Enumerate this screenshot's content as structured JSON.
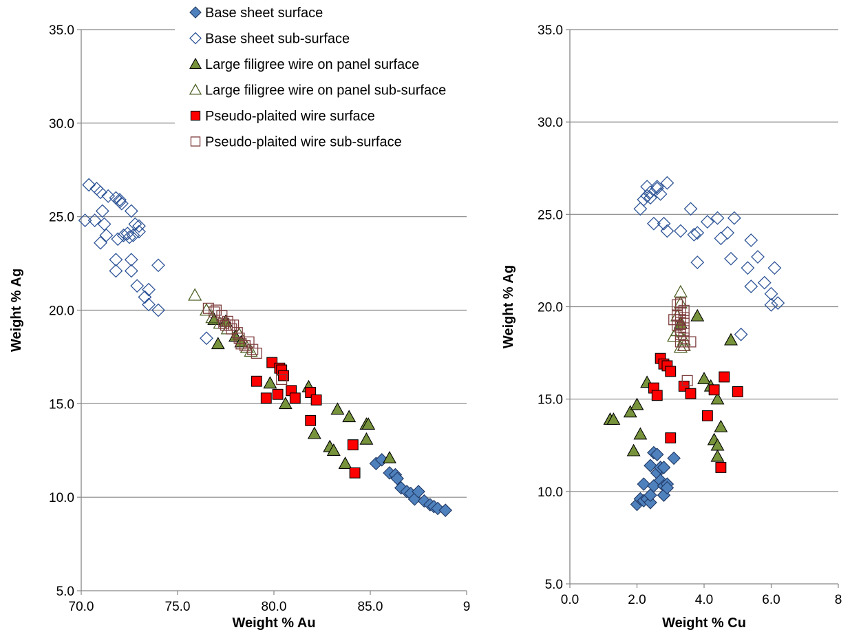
{
  "legend": [
    {
      "name": "Base sheet surface",
      "marker": "diamond",
      "fill": "#4f81bd",
      "stroke": "#1f3864"
    },
    {
      "name": "Base sheet sub-surface",
      "marker": "diamond",
      "fill": "none",
      "stroke": "#2f5597"
    },
    {
      "name": "Large filigree wire on panel surface",
      "marker": "triangle",
      "fill": "#77933c",
      "stroke": "#000000"
    },
    {
      "name": "Large filigree wire on panel sub-surface",
      "marker": "triangle",
      "fill": "none",
      "stroke": "#4f6228"
    },
    {
      "name": "Pseudo-plaited wire  surface",
      "marker": "square",
      "fill": "#ff0000",
      "stroke": "#000000"
    },
    {
      "name": "Pseudo-plaited wire  sub-surface",
      "marker": "square",
      "fill": "none",
      "stroke": "#7f3f3f"
    }
  ],
  "chart_data": [
    {
      "type": "scatter",
      "xlabel": "Weight % Au",
      "ylabel": "Weight % Ag",
      "xlim": [
        70,
        90
      ],
      "ylim": [
        5,
        35
      ],
      "xticks": [
        "70.0",
        "75.0",
        "80.0",
        "85.0",
        "9"
      ],
      "yticks": [
        "5.0",
        "10.0",
        "15.0",
        "20.0",
        "25.0",
        "30.0",
        "35.0"
      ],
      "grid": "horizontal",
      "series": [
        {
          "name": "Base sheet surface",
          "points": [
            [
              85.3,
              11.8
            ],
            [
              85.6,
              12.0
            ],
            [
              86.0,
              11.3
            ],
            [
              86.3,
              11.2
            ],
            [
              86.4,
              11.0
            ],
            [
              86.6,
              10.5
            ],
            [
              86.9,
              10.3
            ],
            [
              87.1,
              10.2
            ],
            [
              87.3,
              9.9
            ],
            [
              87.5,
              10.3
            ],
            [
              87.8,
              9.8
            ],
            [
              88.1,
              9.6
            ],
            [
              88.3,
              9.5
            ],
            [
              88.5,
              9.4
            ],
            [
              88.9,
              9.3
            ]
          ]
        },
        {
          "name": "Base sheet sub-surface",
          "points": [
            [
              70.2,
              24.8
            ],
            [
              70.4,
              26.7
            ],
            [
              70.7,
              24.8
            ],
            [
              70.8,
              26.5
            ],
            [
              71.0,
              26.3
            ],
            [
              71.0,
              23.6
            ],
            [
              71.1,
              25.3
            ],
            [
              71.2,
              24.6
            ],
            [
              71.3,
              24.0
            ],
            [
              71.4,
              26.1
            ],
            [
              71.8,
              26.0
            ],
            [
              71.8,
              22.7
            ],
            [
              71.8,
              22.1
            ],
            [
              71.9,
              23.8
            ],
            [
              72.0,
              25.8
            ],
            [
              72.0,
              25.9
            ],
            [
              72.1,
              25.7
            ],
            [
              72.2,
              24.0
            ],
            [
              72.4,
              24.1
            ],
            [
              72.5,
              23.9
            ],
            [
              72.6,
              22.7
            ],
            [
              72.6,
              22.1
            ],
            [
              72.6,
              25.3
            ],
            [
              72.7,
              24.0
            ],
            [
              72.8,
              24.6
            ],
            [
              72.9,
              21.3
            ],
            [
              73.0,
              24.2
            ],
            [
              73.0,
              24.5
            ],
            [
              73.3,
              20.7
            ],
            [
              73.5,
              21.1
            ],
            [
              73.5,
              20.3
            ],
            [
              74.0,
              22.4
            ],
            [
              74.0,
              20.0
            ],
            [
              76.5,
              18.5
            ]
          ]
        },
        {
          "name": "Large filigree wire on panel surface",
          "points": [
            [
              76.9,
              19.5
            ],
            [
              77.1,
              18.2
            ],
            [
              79.8,
              16.1
            ],
            [
              80.6,
              15.0
            ],
            [
              81.8,
              15.9
            ],
            [
              82.1,
              13.4
            ],
            [
              82.9,
              12.7
            ],
            [
              83.1,
              12.5
            ],
            [
              83.3,
              14.7
            ],
            [
              83.7,
              11.8
            ],
            [
              83.9,
              14.3
            ],
            [
              84.8,
              13.9
            ],
            [
              84.8,
              13.1
            ],
            [
              84.9,
              13.9
            ],
            [
              86.0,
              12.1
            ],
            [
              77.5,
              19.4
            ],
            [
              78.0,
              18.6
            ],
            [
              78.3,
              18.3
            ]
          ]
        },
        {
          "name": "Large filigree wire on panel sub-surface",
          "points": [
            [
              75.9,
              20.8
            ],
            [
              76.5,
              20.0
            ],
            [
              76.8,
              19.6
            ],
            [
              77.2,
              19.3
            ],
            [
              77.6,
              19.0
            ],
            [
              78.2,
              18.7
            ],
            [
              78.6,
              18.0
            ],
            [
              78.8,
              17.8
            ]
          ]
        },
        {
          "name": "Pseudo-plaited wire  surface",
          "points": [
            [
              79.1,
              16.2
            ],
            [
              79.6,
              15.3
            ],
            [
              79.9,
              17.2
            ],
            [
              80.2,
              15.5
            ],
            [
              80.3,
              16.9
            ],
            [
              80.4,
              16.8
            ],
            [
              80.5,
              16.5
            ],
            [
              80.9,
              15.7
            ],
            [
              81.1,
              15.3
            ],
            [
              81.9,
              15.6
            ],
            [
              82.2,
              15.2
            ],
            [
              81.9,
              14.1
            ],
            [
              84.1,
              12.8
            ],
            [
              84.2,
              11.3
            ]
          ]
        },
        {
          "name": "Pseudo-plaited wire  sub-surface",
          "points": [
            [
              76.6,
              20.1
            ],
            [
              76.9,
              19.9
            ],
            [
              77.0,
              20.0
            ],
            [
              77.3,
              19.7
            ],
            [
              77.4,
              19.3
            ],
            [
              77.5,
              19.2
            ],
            [
              77.6,
              19.4
            ],
            [
              77.7,
              19.2
            ],
            [
              77.8,
              19.0
            ],
            [
              77.9,
              19.2
            ],
            [
              78.1,
              18.8
            ],
            [
              78.2,
              18.5
            ],
            [
              78.3,
              18.2
            ],
            [
              78.5,
              18.1
            ],
            [
              78.7,
              18.3
            ],
            [
              78.9,
              17.9
            ],
            [
              79.1,
              17.7
            ],
            [
              80.4,
              16.3
            ]
          ]
        }
      ]
    },
    {
      "type": "scatter",
      "xlabel": "Weight % Cu",
      "ylabel": "Weight % Ag",
      "xlim": [
        0,
        8
      ],
      "ylim": [
        5,
        35
      ],
      "xticks": [
        "0.0",
        "2.0",
        "4.0",
        "6.0",
        "8"
      ],
      "yticks": [
        "5.0",
        "10.0",
        "15.0",
        "20.0",
        "25.0",
        "30.0",
        "35.0"
      ],
      "grid": "horizontal",
      "series": [
        {
          "name": "Base sheet surface",
          "points": [
            [
              2.0,
              9.3
            ],
            [
              2.1,
              9.6
            ],
            [
              2.2,
              10.4
            ],
            [
              2.2,
              9.5
            ],
            [
              2.3,
              9.6
            ],
            [
              2.4,
              9.4
            ],
            [
              2.4,
              11.4
            ],
            [
              2.4,
              9.8
            ],
            [
              2.5,
              10.3
            ],
            [
              2.5,
              12.1
            ],
            [
              2.6,
              12.0
            ],
            [
              2.6,
              11.0
            ],
            [
              2.7,
              11.3
            ],
            [
              2.7,
              10.6
            ],
            [
              2.8,
              11.3
            ],
            [
              2.8,
              10.3
            ],
            [
              2.8,
              9.8
            ],
            [
              2.9,
              10.4
            ],
            [
              2.9,
              10.2
            ],
            [
              3.1,
              11.8
            ]
          ]
        },
        {
          "name": "Base sheet sub-surface",
          "points": [
            [
              2.1,
              25.3
            ],
            [
              2.2,
              25.8
            ],
            [
              2.3,
              26.0
            ],
            [
              2.3,
              26.5
            ],
            [
              2.4,
              25.9
            ],
            [
              2.4,
              26.2
            ],
            [
              2.5,
              24.5
            ],
            [
              2.6,
              26.4
            ],
            [
              2.6,
              26.5
            ],
            [
              2.7,
              26.1
            ],
            [
              2.8,
              24.5
            ],
            [
              2.9,
              26.7
            ],
            [
              2.9,
              24.1
            ],
            [
              3.3,
              24.1
            ],
            [
              3.6,
              25.3
            ],
            [
              3.7,
              23.9
            ],
            [
              3.8,
              24.0
            ],
            [
              3.8,
              22.4
            ],
            [
              4.1,
              24.6
            ],
            [
              4.4,
              24.8
            ],
            [
              4.5,
              23.7
            ],
            [
              4.7,
              24.0
            ],
            [
              4.8,
              22.6
            ],
            [
              4.9,
              24.8
            ],
            [
              5.1,
              18.5
            ],
            [
              5.3,
              22.1
            ],
            [
              5.4,
              23.6
            ],
            [
              5.4,
              21.1
            ],
            [
              5.6,
              22.7
            ],
            [
              5.8,
              21.3
            ],
            [
              6.0,
              20.7
            ],
            [
              6.0,
              20.1
            ],
            [
              6.1,
              22.1
            ],
            [
              6.2,
              20.2
            ]
          ]
        },
        {
          "name": "Large filigree wire on panel surface",
          "points": [
            [
              1.2,
              13.9
            ],
            [
              1.3,
              13.9
            ],
            [
              1.8,
              14.3
            ],
            [
              1.9,
              12.2
            ],
            [
              2.0,
              14.7
            ],
            [
              2.1,
              13.1
            ],
            [
              2.3,
              15.9
            ],
            [
              3.3,
              19.1
            ],
            [
              3.8,
              19.5
            ],
            [
              4.0,
              16.1
            ],
            [
              4.2,
              15.7
            ],
            [
              4.3,
              12.8
            ],
            [
              4.4,
              12.5
            ],
            [
              4.4,
              15.0
            ],
            [
              4.4,
              11.9
            ],
            [
              4.5,
              13.5
            ],
            [
              4.8,
              18.2
            ]
          ]
        },
        {
          "name": "Large filigree wire on panel sub-surface",
          "points": [
            [
              3.1,
              18.4
            ],
            [
              3.2,
              18.7
            ],
            [
              3.2,
              19.5
            ],
            [
              3.3,
              20.2
            ],
            [
              3.3,
              20.8
            ],
            [
              3.3,
              17.8
            ],
            [
              3.4,
              18.2
            ],
            [
              3.4,
              17.9
            ]
          ]
        },
        {
          "name": "Pseudo-plaited wire  surface",
          "points": [
            [
              2.5,
              15.6
            ],
            [
              2.6,
              15.2
            ],
            [
              2.7,
              17.2
            ],
            [
              2.8,
              16.9
            ],
            [
              2.9,
              16.8
            ],
            [
              3.0,
              16.5
            ],
            [
              3.0,
              12.9
            ],
            [
              3.4,
              15.7
            ],
            [
              3.6,
              15.3
            ],
            [
              4.1,
              14.1
            ],
            [
              4.3,
              15.5
            ],
            [
              4.5,
              11.3
            ],
            [
              4.6,
              16.2
            ],
            [
              5.0,
              15.4
            ]
          ]
        },
        {
          "name": "Pseudo-plaited wire  sub-surface",
          "points": [
            [
              3.1,
              19.3
            ],
            [
              3.2,
              20.1
            ],
            [
              3.2,
              19.5
            ],
            [
              3.2,
              19.0
            ],
            [
              3.3,
              20.2
            ],
            [
              3.3,
              19.7
            ],
            [
              3.3,
              19.3
            ],
            [
              3.3,
              18.9
            ],
            [
              3.3,
              18.5
            ],
            [
              3.3,
              18.1
            ],
            [
              3.4,
              19.8
            ],
            [
              3.4,
              19.4
            ],
            [
              3.4,
              19.1
            ],
            [
              3.4,
              18.7
            ],
            [
              3.4,
              18.3
            ],
            [
              3.4,
              17.9
            ],
            [
              3.6,
              18.1
            ],
            [
              3.5,
              16.0
            ]
          ]
        }
      ]
    }
  ]
}
